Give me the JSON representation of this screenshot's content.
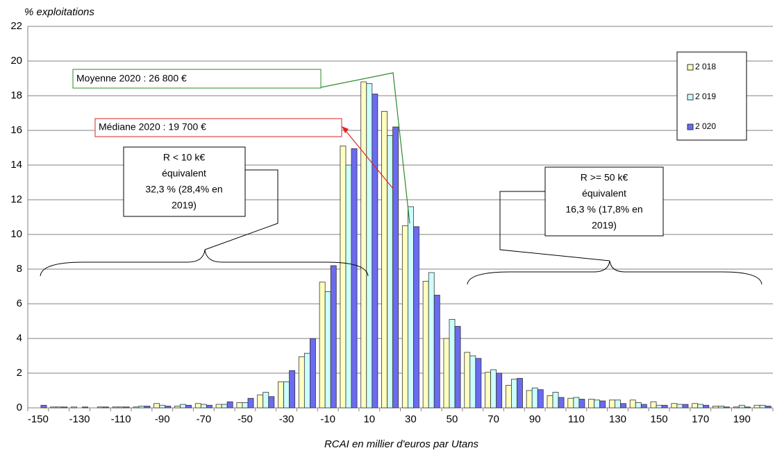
{
  "chart_data": {
    "type": "bar",
    "y_label": "% exploitations",
    "x_label": "RCAI en millier d'euros par Utans",
    "categories": [
      "-150",
      null,
      "-130",
      null,
      "-110",
      null,
      "-90",
      null,
      "-70",
      null,
      "-50",
      null,
      "-30",
      null,
      "-10",
      null,
      "10",
      null,
      "30",
      null,
      "50",
      null,
      "70",
      null,
      "90",
      null,
      "110",
      null,
      "130",
      null,
      "150",
      null,
      "170",
      null,
      "190",
      null
    ],
    "series": [
      {
        "name": "2 018",
        "color": "#ffffc0",
        "values": [
          0,
          0.05,
          0.05,
          0,
          0.05,
          0.05,
          0.25,
          0.1,
          0.25,
          0.2,
          0.3,
          0.75,
          1.5,
          2.95,
          7.25,
          15.1,
          18.8,
          17.1,
          10.5,
          7.3,
          4.0,
          3.2,
          2.05,
          1.3,
          1.0,
          0.7,
          0.55,
          0.5,
          0.45,
          0.45,
          0.35,
          0.25,
          0.25,
          0.1,
          0.05,
          0.15
        ]
      },
      {
        "name": "2 019",
        "color": "#ccffff",
        "values": [
          0,
          0.05,
          0,
          0.05,
          0.05,
          0.1,
          0.15,
          0.2,
          0.2,
          0.2,
          0.3,
          0.9,
          1.5,
          3.15,
          6.7,
          14.0,
          18.7,
          15.7,
          11.6,
          7.8,
          5.1,
          3.0,
          2.2,
          1.65,
          1.15,
          0.9,
          0.6,
          0.45,
          0.45,
          0.3,
          0.15,
          0.2,
          0.2,
          0.1,
          0.15,
          0.15
        ]
      },
      {
        "name": "2 020",
        "color": "#6b6bef",
        "values": [
          0.15,
          0.05,
          0.05,
          0.05,
          0.05,
          0.1,
          0.1,
          0.15,
          0.15,
          0.35,
          0.55,
          0.65,
          2.15,
          4.0,
          8.2,
          14.95,
          18.1,
          16.2,
          10.45,
          6.5,
          4.7,
          2.85,
          2.0,
          1.7,
          1.05,
          0.6,
          0.5,
          0.4,
          0.25,
          0.2,
          0.15,
          0.2,
          0.15,
          0.05,
          0.05,
          0.1
        ]
      }
    ],
    "ylim": [
      0,
      22
    ],
    "yticks": [
      0,
      2,
      4,
      6,
      8,
      10,
      12,
      14,
      16,
      18,
      20,
      22
    ],
    "grid": true,
    "annotations": [
      {
        "text": "Moyenne 2020 : 26 800 €"
      },
      {
        "text": "Médiane 2020 : 19 700  €"
      },
      {
        "lines": [
          "R  < 10 k€",
          "équivalent",
          "32,3 % (28,4% en",
          "2019)"
        ]
      },
      {
        "lines": [
          "R  >= 50 k€",
          "équivalent",
          "16,3 % (17,8% en",
          "2019)"
        ]
      }
    ]
  }
}
